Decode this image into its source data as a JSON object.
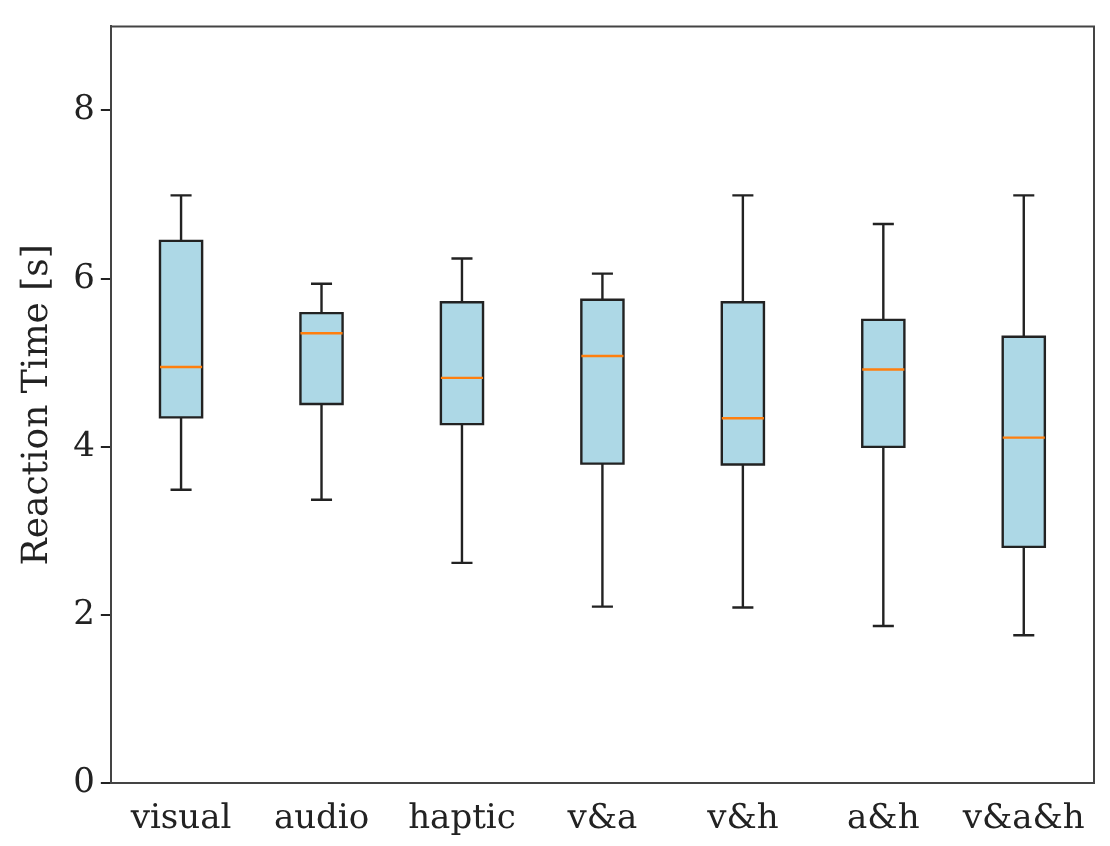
{
  "chart_data": {
    "type": "box",
    "ylabel": "Reaction Time [s]",
    "categories": [
      "visual",
      "audio",
      "haptic",
      "v&a",
      "v&h",
      "a&h",
      "v&a&h"
    ],
    "series": [
      {
        "color": "#add8e6",
        "boxes": [
          {
            "low": 3.49,
            "q1": 4.35,
            "median": 4.95,
            "q3": 6.45,
            "high": 6.99
          },
          {
            "low": 3.37,
            "q1": 4.51,
            "median": 5.35,
            "q3": 5.59,
            "high": 5.94
          },
          {
            "low": 2.62,
            "q1": 4.27,
            "median": 4.82,
            "q3": 5.72,
            "high": 6.24
          },
          {
            "low": 2.1,
            "q1": 3.8,
            "median": 5.08,
            "q3": 5.75,
            "high": 6.06
          },
          {
            "low": 2.09,
            "q1": 3.79,
            "median": 4.34,
            "q3": 5.72,
            "high": 6.99
          },
          {
            "low": 1.87,
            "q1": 4.0,
            "median": 4.92,
            "q3": 5.51,
            "high": 6.65
          },
          {
            "low": 1.76,
            "q1": 2.81,
            "median": 4.11,
            "q3": 5.31,
            "high": 6.99
          }
        ]
      }
    ],
    "ylim": [
      0,
      9
    ],
    "yticks": [
      0,
      2,
      4,
      6,
      8
    ],
    "grid": false,
    "legend": false
  }
}
